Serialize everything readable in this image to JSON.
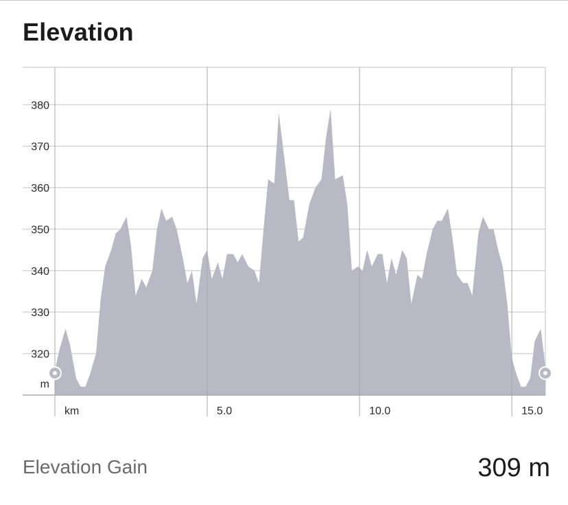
{
  "header": {
    "title": "Elevation"
  },
  "chart_data": {
    "type": "area",
    "xlim": [
      -0.2,
      16.3
    ],
    "ylim": [
      310,
      389
    ],
    "y_ticks": [
      320,
      330,
      340,
      350,
      360,
      370,
      380
    ],
    "y_unit_label": "m",
    "x_gridlines": [
      0,
      5,
      10,
      15
    ],
    "x_tick_labels": [
      {
        "value": 0,
        "label": "km"
      },
      {
        "value": 5,
        "label": "5.0"
      },
      {
        "value": 10,
        "label": "10.0"
      },
      {
        "value": 15,
        "label": "15.0"
      }
    ],
    "colors": {
      "area": "#b9b8c5",
      "grid": "#d6d6d6",
      "grid_major": "#a8a8a8",
      "marker": "#b9b8c5"
    },
    "x": [
      0,
      0.15,
      0.35,
      0.5,
      0.7,
      0.85,
      1.0,
      1.15,
      1.35,
      1.5,
      1.65,
      1.85,
      2.0,
      2.15,
      2.35,
      2.5,
      2.65,
      2.85,
      3.0,
      3.2,
      3.35,
      3.5,
      3.65,
      3.85,
      4.0,
      4.2,
      4.35,
      4.5,
      4.65,
      4.85,
      5.0,
      5.15,
      5.35,
      5.5,
      5.65,
      5.85,
      6.0,
      6.15,
      6.35,
      6.55,
      6.7,
      6.85,
      7.0,
      7.2,
      7.35,
      7.55,
      7.7,
      7.85,
      8.0,
      8.15,
      8.35,
      8.55,
      8.75,
      8.9,
      9.05,
      9.2,
      9.45,
      9.6,
      9.75,
      9.95,
      10.1,
      10.25,
      10.4,
      10.6,
      10.75,
      10.9,
      11.05,
      11.2,
      11.4,
      11.55,
      11.7,
      11.9,
      12.05,
      12.2,
      12.4,
      12.55,
      12.7,
      12.9,
      13.05,
      13.2,
      13.4,
      13.55,
      13.7,
      13.9,
      14.05,
      14.25,
      14.4,
      14.55,
      14.7,
      14.85,
      15.0,
      15.15,
      15.3,
      15.45,
      15.6,
      15.75,
      15.95,
      16.1
    ],
    "y": [
      316,
      321,
      326,
      322,
      314,
      312,
      312,
      315,
      320,
      333,
      341,
      345,
      349,
      350,
      353,
      346,
      334,
      338,
      336,
      340,
      350,
      355,
      352,
      353,
      350,
      343,
      337,
      340,
      332,
      343,
      345,
      338,
      342,
      338,
      344,
      344,
      342,
      344,
      341,
      340,
      337,
      350,
      362,
      361,
      378,
      366,
      357,
      357,
      347,
      348,
      356,
      360,
      362,
      372,
      379,
      362,
      363,
      356,
      340,
      341,
      340,
      345,
      341,
      344,
      344,
      337,
      343,
      339,
      345,
      343,
      332,
      339,
      338,
      344,
      350,
      352,
      352,
      355,
      348,
      339,
      337,
      337,
      334,
      349,
      353,
      350,
      350,
      345,
      341,
      332,
      319,
      315,
      312,
      312,
      314,
      323,
      326,
      317
    ]
  },
  "summary": {
    "label": "Elevation Gain",
    "value": "309 m"
  }
}
